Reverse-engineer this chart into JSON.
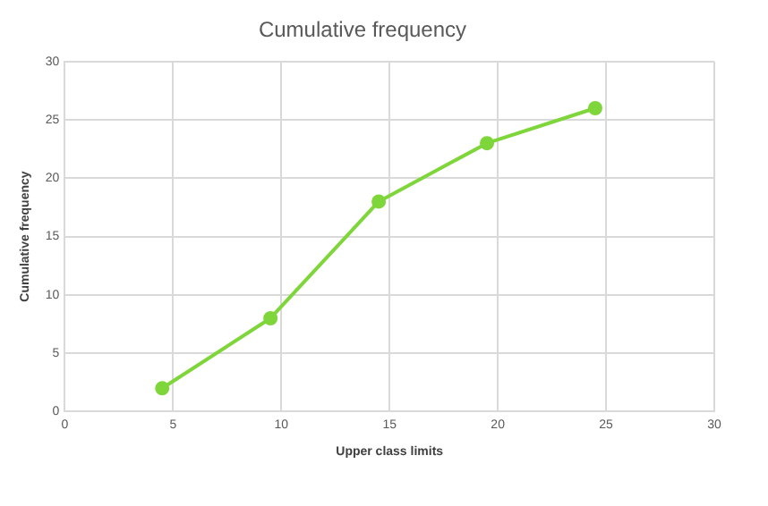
{
  "chart_data": {
    "type": "line",
    "title": "Cumulative frequency",
    "xlabel": "Upper class limits",
    "ylabel": "Cumulative frequency",
    "x": [
      4.5,
      9.5,
      14.5,
      19.5,
      24.5
    ],
    "series": [
      {
        "color": "#7ed63a",
        "values": [
          2,
          8,
          18,
          23,
          26
        ]
      }
    ],
    "xlim": [
      0,
      30
    ],
    "xticks": [
      0,
      5,
      10,
      15,
      20,
      25,
      30
    ],
    "ylim": [
      0,
      30
    ],
    "yticks": [
      0,
      5,
      10,
      15,
      20,
      25,
      30
    ],
    "grid": true,
    "legend": false,
    "marker": "circle",
    "line_style": "solid"
  }
}
